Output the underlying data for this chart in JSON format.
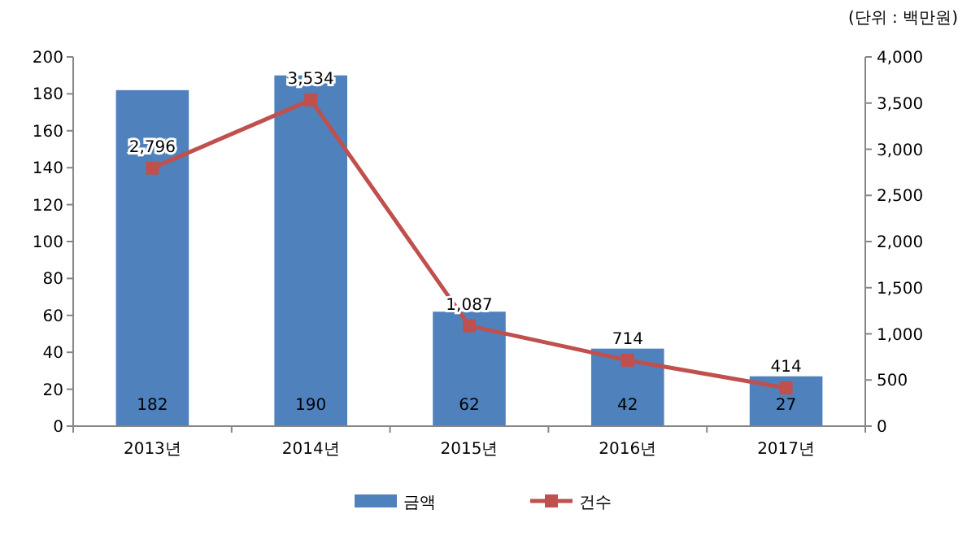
{
  "chart_data": {
    "type": "bar",
    "annotations": [
      "(단위 : 백만원)"
    ],
    "categories": [
      "2013년",
      "2014년",
      "2015년",
      "2016년",
      "2017년"
    ],
    "series": [
      {
        "name": "금액",
        "color": "#4f81bd",
        "values": [
          182,
          190,
          62,
          42,
          27
        ],
        "value_labels": [
          "182",
          "190",
          "62",
          "42",
          "27"
        ]
      },
      {
        "name": "건수",
        "type": "line",
        "axis": "y2",
        "color": "#c0504d",
        "marker": "square",
        "values": [
          2796,
          3534,
          1087,
          714,
          414
        ],
        "value_labels": [
          "2,796",
          "3,534",
          "1,087",
          "714",
          "414"
        ]
      }
    ],
    "ylim": [
      0,
      200
    ],
    "yticks": [
      0,
      20,
      40,
      60,
      80,
      100,
      120,
      140,
      160,
      180,
      200
    ],
    "y2lim": [
      0,
      4000
    ],
    "y2ticks": [
      {
        "value": 0,
        "label": "0"
      },
      {
        "value": 500,
        "label": "500"
      },
      {
        "value": 1000,
        "label": "1,000"
      },
      {
        "value": 1500,
        "label": "1,500"
      },
      {
        "value": 2000,
        "label": "2,000"
      },
      {
        "value": 2500,
        "label": "2,500"
      },
      {
        "value": 3000,
        "label": "3,000"
      },
      {
        "value": 3500,
        "label": "3,500"
      },
      {
        "value": 4000,
        "label": "4,000"
      }
    ],
    "grid": false,
    "legend": "bottom"
  }
}
